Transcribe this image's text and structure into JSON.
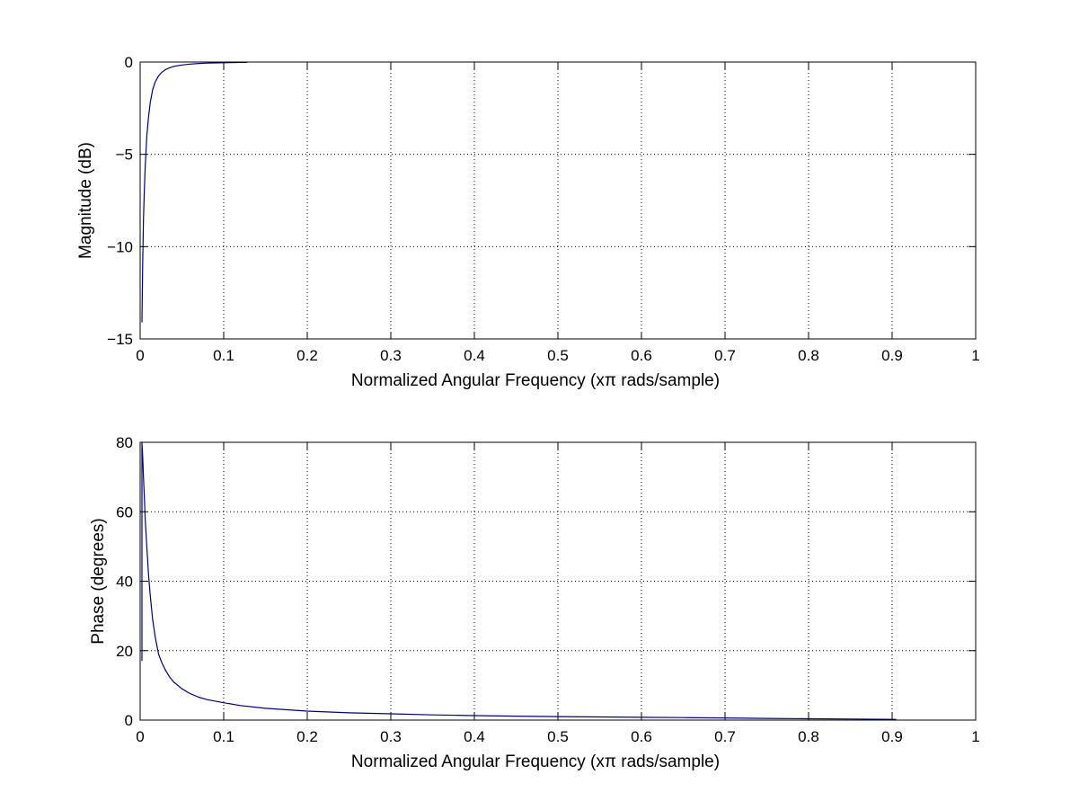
{
  "chart_data": [
    {
      "type": "line",
      "title": "",
      "xlabel": "Normalized Angular Frequency  (xπ rads/sample)",
      "ylabel": "Magnitude (dB)",
      "xlim": [
        0,
        1
      ],
      "ylim": [
        -15,
        0
      ],
      "x_ticks": [
        0,
        0.1,
        0.2,
        0.3,
        0.4,
        0.5,
        0.6,
        0.7,
        0.8,
        0.9,
        1
      ],
      "x_tick_labels": [
        "0",
        "0.1",
        "0.2",
        "0.3",
        "0.4",
        "0.5",
        "0.6",
        "0.7",
        "0.8",
        "0.9",
        "1"
      ],
      "y_ticks": [
        -15,
        -10,
        -5,
        0
      ],
      "y_tick_labels": [
        "−15",
        "−10",
        "−5",
        "0"
      ],
      "grid": true,
      "line_color": "#00007f",
      "series": [
        {
          "x": [
            0.0022,
            0.003,
            0.004,
            0.005,
            0.006,
            0.008,
            0.01,
            0.012,
            0.015,
            0.018,
            0.022,
            0.026,
            0.03,
            0.035,
            0.04,
            0.05,
            0.06,
            0.07,
            0.08,
            0.09,
            0.1,
            0.11,
            0.12,
            0.128
          ],
          "y": [
            -14.1,
            -11.0,
            -8.5,
            -6.9,
            -5.7,
            -4.0,
            -3.0,
            -2.2,
            -1.5,
            -1.08,
            -0.75,
            -0.55,
            -0.42,
            -0.31,
            -0.24,
            -0.16,
            -0.11,
            -0.08,
            -0.06,
            -0.05,
            -0.04,
            -0.03,
            -0.02,
            -0.02
          ]
        }
      ]
    },
    {
      "type": "line",
      "title": "",
      "xlabel": "Normalized Angular Frequency  (xπ rads/sample)",
      "ylabel": "Phase (degrees)",
      "xlim": [
        0,
        1
      ],
      "ylim": [
        0,
        80
      ],
      "x_ticks": [
        0,
        0.1,
        0.2,
        0.3,
        0.4,
        0.5,
        0.6,
        0.7,
        0.8,
        0.9,
        1
      ],
      "x_tick_labels": [
        "0",
        "0.1",
        "0.2",
        "0.3",
        "0.4",
        "0.5",
        "0.6",
        "0.7",
        "0.8",
        "0.9",
        "1"
      ],
      "y_ticks": [
        0,
        20,
        40,
        60,
        80
      ],
      "y_tick_labels": [
        "0",
        "20",
        "40",
        "60",
        "80"
      ],
      "grid": true,
      "line_color": "#00007f",
      "series": [
        {
          "x": [
            0.0022,
            0.0022,
            0.003,
            0.004,
            0.005,
            0.006,
            0.008,
            0.01,
            0.012,
            0.015,
            0.018,
            0.022,
            0.026,
            0.03,
            0.035,
            0.04,
            0.05,
            0.06,
            0.07,
            0.08,
            0.1,
            0.12,
            0.15,
            0.2,
            0.25,
            0.3,
            0.35,
            0.4,
            0.45,
            0.5,
            0.55,
            0.6,
            0.65,
            0.7,
            0.75,
            0.8,
            0.85,
            0.905
          ],
          "y": [
            17,
            80,
            76,
            70,
            64,
            58,
            50,
            42,
            36,
            29,
            24,
            19,
            16.5,
            14.5,
            12.5,
            11,
            9,
            7.6,
            6.6,
            5.9,
            5.0,
            4.2,
            3.4,
            2.6,
            2.1,
            1.8,
            1.5,
            1.3,
            1.15,
            1.0,
            0.9,
            0.8,
            0.72,
            0.63,
            0.5,
            0.4,
            0.3,
            0.2
          ]
        }
      ]
    }
  ]
}
